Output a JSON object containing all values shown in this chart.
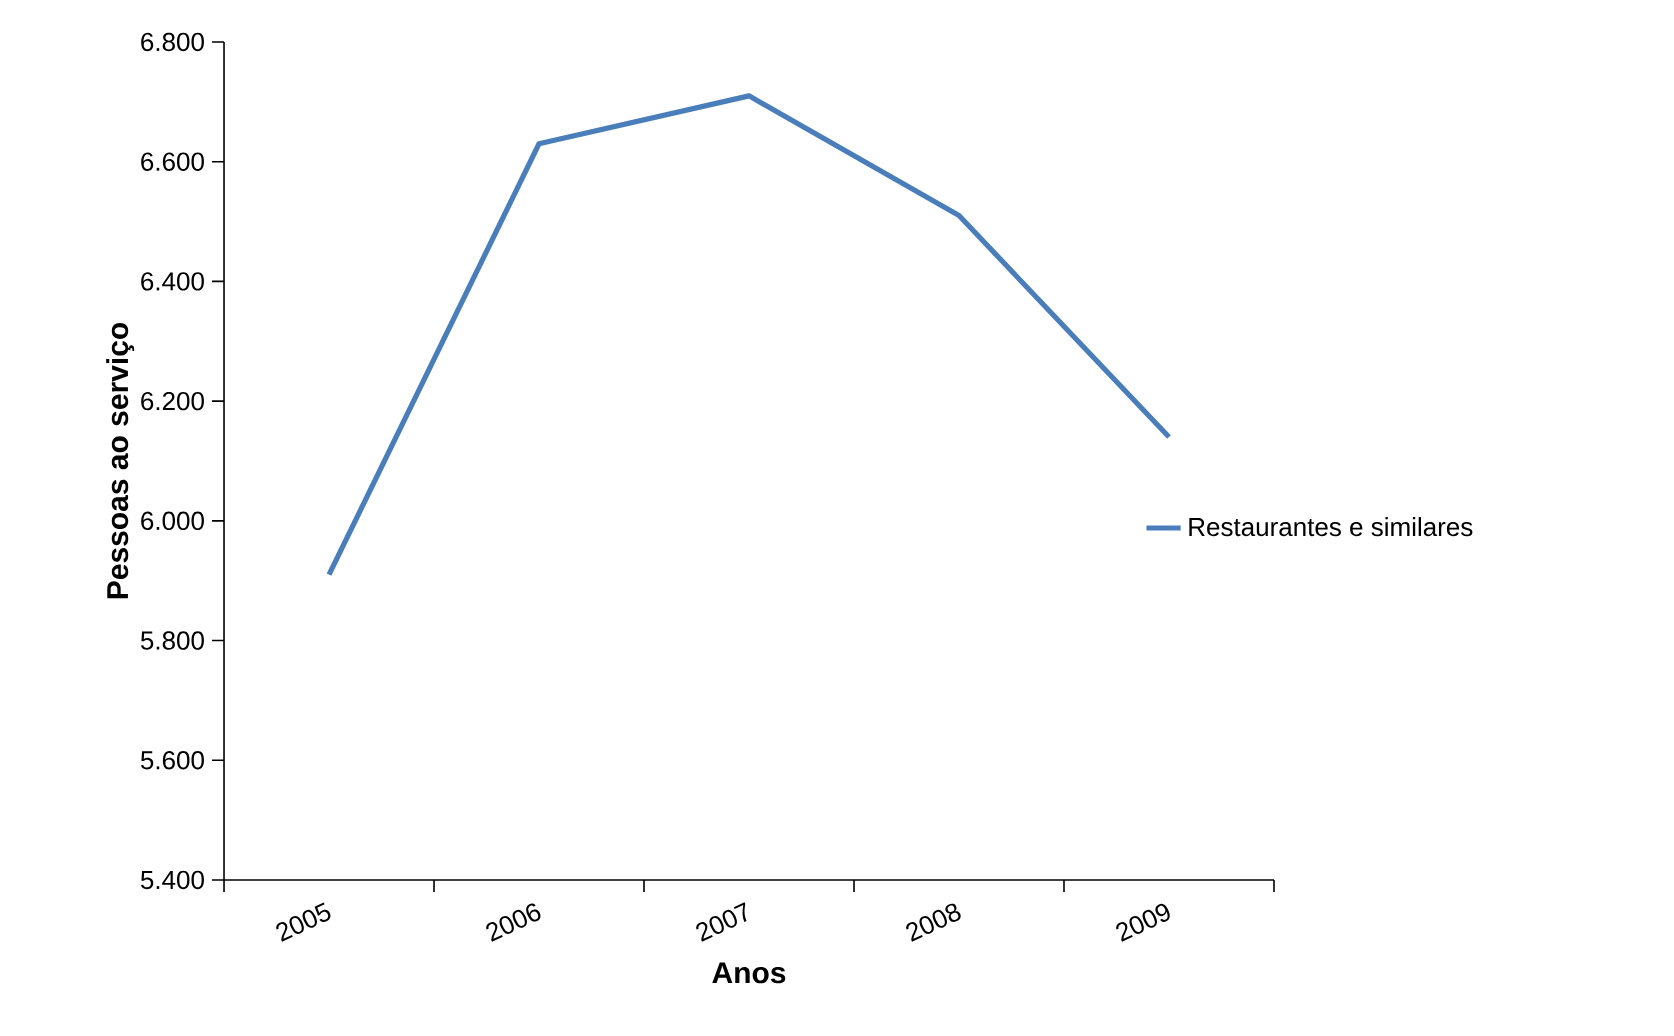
{
  "chart_data": {
    "type": "line",
    "xlabel": "Anos",
    "ylabel": "Pessoas ao serviço",
    "categories": [
      "2005",
      "2006",
      "2007",
      "2008",
      "2009"
    ],
    "series": [
      {
        "name": "Restaurantes e similares",
        "color": "#4a7ebb",
        "values": [
          5910,
          6630,
          6710,
          6510,
          6140
        ]
      }
    ],
    "ylim": [
      5400,
      6800
    ],
    "yticks": [
      {
        "value": 5400,
        "label": "5.400"
      },
      {
        "value": 5600,
        "label": "5.600"
      },
      {
        "value": 5800,
        "label": "5.800"
      },
      {
        "value": 6000,
        "label": "6.000"
      },
      {
        "value": 6200,
        "label": "6.200"
      },
      {
        "value": 6400,
        "label": "6.400"
      },
      {
        "value": 6600,
        "label": "6.600"
      },
      {
        "value": 6800,
        "label": "6.800"
      }
    ],
    "grid": false,
    "legend": "right",
    "marker": "none",
    "line_style": "solid"
  }
}
